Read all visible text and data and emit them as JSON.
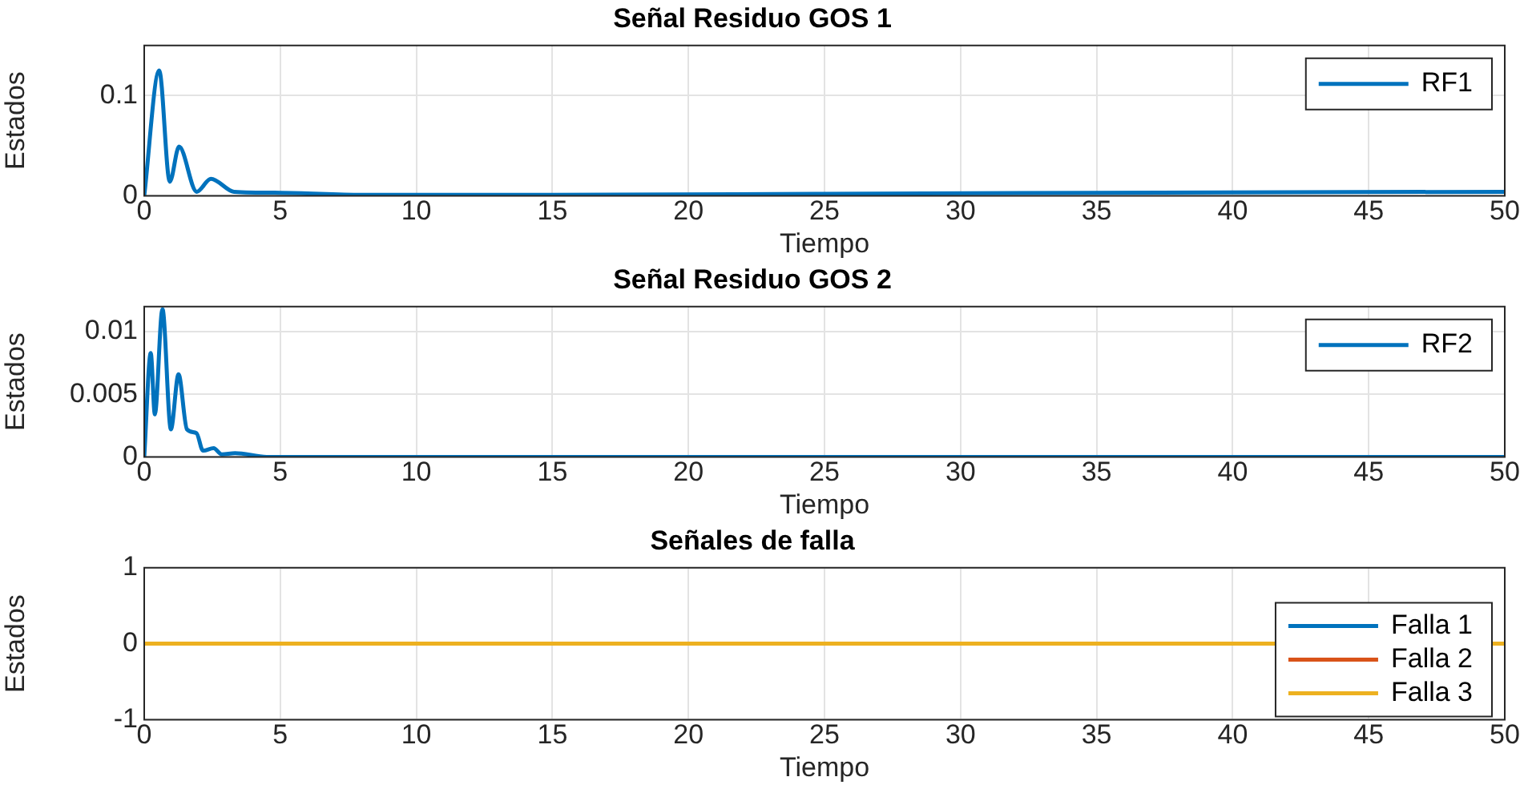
{
  "chart_data": [
    {
      "type": "line",
      "title": "Señal Residuo GOS 1",
      "xlabel": "Tiempo",
      "ylabel": "Estados",
      "x": [
        0,
        0.55,
        0.94,
        1.28,
        1.93,
        2.45,
        3.3,
        5,
        8,
        15,
        25,
        35,
        50
      ],
      "series": [
        {
          "name": "RF1",
          "color": "#0072bd",
          "values": [
            0,
            0.125,
            0.014,
            0.049,
            0.004,
            0.017,
            0.004,
            0.003,
            0.001,
            0.001,
            0.002,
            0.003,
            0.004
          ]
        }
      ],
      "xlim": [
        0,
        50
      ],
      "xticks": [
        0,
        5,
        10,
        15,
        20,
        25,
        30,
        35,
        40,
        45,
        50
      ],
      "ylim": [
        0,
        0.15
      ],
      "yticks": [
        0,
        0.1
      ],
      "grid": true,
      "legend": "top right",
      "marker": "none",
      "line_style": "solid"
    },
    {
      "type": "line",
      "title": "Señal Residuo GOS 2",
      "xlabel": "Tiempo",
      "ylabel": "Estados",
      "x": [
        0,
        0.24,
        0.39,
        0.67,
        0.98,
        1.26,
        1.57,
        1.92,
        2.16,
        2.55,
        2.85,
        3.34,
        4.5,
        50
      ],
      "series": [
        {
          "name": "RF2",
          "color": "#0072bd",
          "values": [
            0,
            0.0083,
            0.0034,
            0.0118,
            0.0022,
            0.0066,
            0.0022,
            0.0019,
            0.0005,
            0.0007,
            0.0002,
            0.0003,
            0,
            0
          ]
        }
      ],
      "xlim": [
        0,
        50
      ],
      "xticks": [
        0,
        5,
        10,
        15,
        20,
        25,
        30,
        35,
        40,
        45,
        50
      ],
      "ylim": [
        0,
        0.012
      ],
      "yticks": [
        0,
        0.005,
        0.01
      ],
      "grid": true,
      "legend": "top right",
      "marker": "none",
      "line_style": "solid"
    },
    {
      "type": "line",
      "title": "Señales de falla",
      "xlabel": "Tiempo",
      "ylabel": "Estados",
      "x": [
        0,
        50
      ],
      "series": [
        {
          "name": "Falla 1",
          "color": "#0072bd",
          "values": [
            null,
            null
          ]
        },
        {
          "name": "Falla 2",
          "color": "#d95319",
          "values": [
            null,
            null
          ]
        },
        {
          "name": "Falla 3",
          "color": "#edb120",
          "values": [
            0,
            0
          ]
        }
      ],
      "xlim": [
        0,
        50
      ],
      "xticks": [
        0,
        5,
        10,
        15,
        20,
        25,
        30,
        35,
        40,
        45,
        50
      ],
      "ylim": [
        -1,
        1
      ],
      "yticks": [
        -1,
        0,
        1
      ],
      "grid": true,
      "legend": "bottom right",
      "marker": "none",
      "line_style": "solid"
    }
  ]
}
